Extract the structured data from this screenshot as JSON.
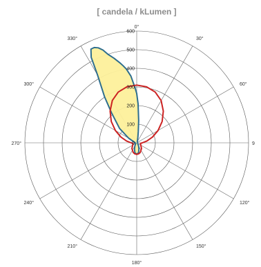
{
  "chart_data": {
    "type": "polar-line",
    "title": "[ candela / kLumen ]",
    "angle_labels": [
      "0°",
      "30°",
      "60°",
      "9",
      "120°",
      "150°",
      "180°",
      "210°",
      "240°",
      "270°",
      "300°",
      "330°"
    ],
    "radial_ticks": [
      "0",
      "100",
      "200",
      "300",
      "400",
      "500",
      "600"
    ],
    "r_max": 600,
    "series": [
      {
        "color": "#2e6e8e",
        "fill": "#fdf09b",
        "angles": [
          0,
          2,
          5,
          8,
          12,
          15,
          18,
          20,
          25,
          30,
          40,
          60,
          90,
          120,
          150,
          160,
          170,
          180,
          190,
          200,
          210,
          240,
          270,
          300,
          310,
          320,
          325,
          330,
          332,
          334,
          336,
          338,
          340,
          342,
          345,
          348,
          350,
          352,
          355,
          358
        ],
        "values": [
          265,
          210,
          120,
          60,
          30,
          18,
          12,
          10,
          8,
          6,
          5,
          5,
          5,
          6,
          20,
          35,
          55,
          60,
          55,
          35,
          20,
          6,
          8,
          50,
          120,
          210,
          300,
          420,
          520,
          560,
          560,
          550,
          530,
          500,
          470,
          440,
          420,
          400,
          360,
          300
        ]
      },
      {
        "color": "#cc2222",
        "angles": [
          0,
          10,
          20,
          30,
          40,
          50,
          60,
          70,
          80,
          90,
          100,
          120,
          140,
          160,
          170,
          180,
          190,
          200,
          220,
          240,
          260,
          270,
          280,
          290,
          300,
          310,
          320,
          330,
          340,
          350
        ],
        "values": [
          310,
          305,
          290,
          262,
          222,
          178,
          132,
          90,
          55,
          30,
          20,
          25,
          40,
          55,
          60,
          62,
          60,
          55,
          40,
          25,
          20,
          30,
          55,
          90,
          132,
          178,
          222,
          262,
          290,
          305
        ]
      }
    ]
  }
}
